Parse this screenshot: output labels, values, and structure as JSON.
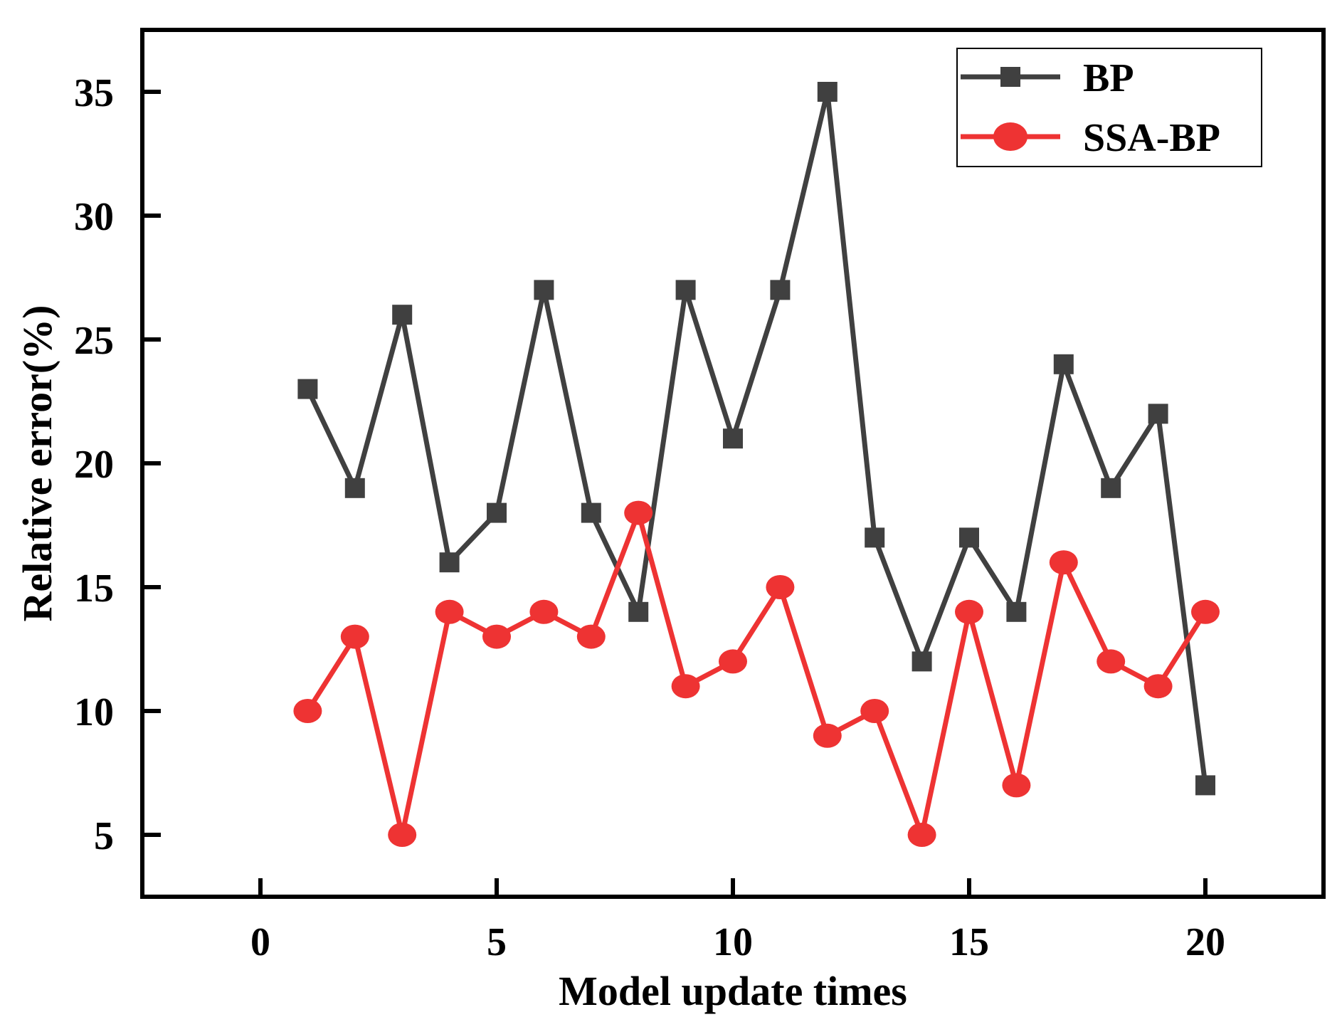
{
  "chart_data": {
    "type": "line",
    "title": "",
    "xlabel": "Model update times",
    "ylabel": "Relative error(%)",
    "xlim": [
      -2.5,
      22.5
    ],
    "ylim": [
      2.5,
      37.5
    ],
    "xticks": [
      0,
      5,
      10,
      15,
      20
    ],
    "yticks": [
      5,
      10,
      15,
      20,
      25,
      30,
      35
    ],
    "grid": false,
    "legend_position": "top-right",
    "x": [
      1,
      2,
      3,
      4,
      5,
      6,
      7,
      8,
      9,
      10,
      11,
      12,
      13,
      14,
      15,
      16,
      17,
      18,
      19,
      20
    ],
    "series": [
      {
        "name": "BP",
        "color": "#404040",
        "marker": "square",
        "values": [
          23,
          19,
          26,
          16,
          18,
          27,
          18,
          14,
          27,
          21,
          27,
          35,
          17,
          12,
          17,
          14,
          24,
          19,
          22,
          7
        ]
      },
      {
        "name": "SSA-BP",
        "color": "#ee3333",
        "marker": "circle",
        "values": [
          10,
          13,
          5,
          14,
          13,
          14,
          13,
          18,
          11,
          12,
          15,
          9,
          10,
          5,
          14,
          7,
          16,
          12,
          11,
          14
        ]
      }
    ]
  }
}
